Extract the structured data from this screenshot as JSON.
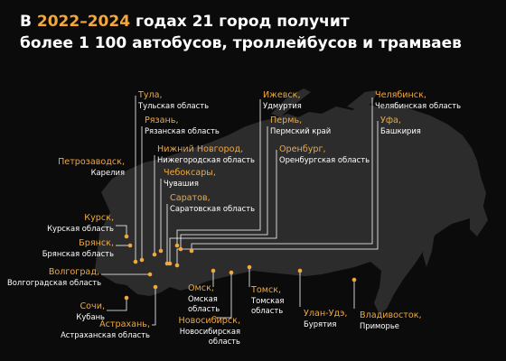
{
  "header": {
    "line1_prefix": "В ",
    "years": "2022–2024",
    "line1_suffix": " годах 21 город получит",
    "line2": "более 1 100 автобусов, троллейбусов и трамваев"
  },
  "colors": {
    "accent": "#f2a83b",
    "land": "#2c2c2c",
    "background": "#0b0b0b",
    "text": "#ffffff"
  },
  "cities": [
    {
      "id": "tula",
      "name": "Тула,",
      "region": "Тульская область"
    },
    {
      "id": "ryazan",
      "name": "Рязань,",
      "region": "Рязанская область"
    },
    {
      "id": "nn",
      "name": "Нижний Новгород,",
      "region": "Нижегородская область"
    },
    {
      "id": "cheb",
      "name": "Чебоксары,",
      "region": "Чувашия"
    },
    {
      "id": "saratov",
      "name": "Саратов,",
      "region": "Саратовская область"
    },
    {
      "id": "petro",
      "name": "Петрозаводск,",
      "region": "Карелия"
    },
    {
      "id": "izhevsk",
      "name": "Ижевск,",
      "region": "Удмуртия"
    },
    {
      "id": "perm",
      "name": "Пермь,",
      "region": "Пермский край"
    },
    {
      "id": "orenburg",
      "name": "Оренбург,",
      "region": "Оренбургская область"
    },
    {
      "id": "chel",
      "name": "Челябинск,",
      "region": "Челябинская область"
    },
    {
      "id": "ufa",
      "name": "Уфа,",
      "region": "Башкирия"
    },
    {
      "id": "kursk",
      "name": "Курск,",
      "region": "Курская область"
    },
    {
      "id": "bryansk",
      "name": "Брянск,",
      "region": "Брянская область"
    },
    {
      "id": "volgograd",
      "name": "Волгоград,",
      "region": "Волгоградская область"
    },
    {
      "id": "sochi",
      "name": "Сочи,",
      "region": "Кубань"
    },
    {
      "id": "astrakhan",
      "name": "Астрахань,",
      "region": "Астраханская область"
    },
    {
      "id": "omsk",
      "name": "Омск,",
      "region_lines": [
        "Омская",
        "область"
      ]
    },
    {
      "id": "novosib",
      "name": "Новосибирск,",
      "region_lines": [
        "Новосибирская",
        "область"
      ]
    },
    {
      "id": "tomsk",
      "name": "Томск,",
      "region_lines": [
        "Томская",
        "область"
      ]
    },
    {
      "id": "ulanude",
      "name": "Улан-Удэ,",
      "region": "Бурятия"
    },
    {
      "id": "vlad",
      "name": "Владивосток,",
      "region": "Приморье"
    }
  ]
}
